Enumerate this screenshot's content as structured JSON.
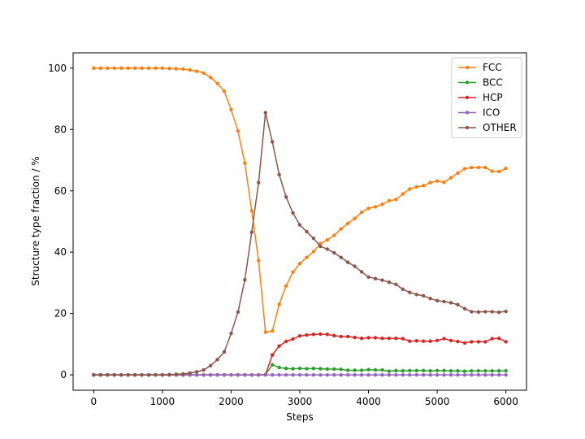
{
  "chart_data": {
    "type": "line",
    "xlabel": "Steps",
    "ylabel": "Structure type fraction / %",
    "xlim": [
      -300,
      6300
    ],
    "ylim": [
      -5,
      105
    ],
    "xticks": [
      0,
      1000,
      2000,
      3000,
      4000,
      5000,
      6000
    ],
    "yticks": [
      0,
      20,
      40,
      60,
      80,
      100
    ],
    "grid": false,
    "legend_position": "top-right",
    "x": [
      0,
      100,
      200,
      300,
      400,
      500,
      600,
      700,
      800,
      900,
      1000,
      1100,
      1200,
      1300,
      1400,
      1500,
      1600,
      1700,
      1800,
      1900,
      2000,
      2100,
      2200,
      2300,
      2400,
      2500,
      2600,
      2700,
      2800,
      2900,
      3000,
      3100,
      3200,
      3300,
      3400,
      3500,
      3600,
      3700,
      3800,
      3900,
      4000,
      4100,
      4200,
      4300,
      4400,
      4500,
      4600,
      4700,
      4800,
      4900,
      5000,
      5100,
      5200,
      5300,
      5400,
      5500,
      5600,
      5700,
      5800,
      5900,
      6000
    ],
    "series": [
      {
        "name": "FCC",
        "color": "#ff7f0e",
        "values": [
          100,
          100,
          100,
          100,
          100,
          100,
          100,
          100,
          100,
          100,
          100,
          99.9,
          99.8,
          99.7,
          99.4,
          99.0,
          98.4,
          97.0,
          95.0,
          92.5,
          86.5,
          79.5,
          69.0,
          53.5,
          37.3,
          13.9,
          14.3,
          23.0,
          29.0,
          33.5,
          36.3,
          38.3,
          40.2,
          42.8,
          44.0,
          45.5,
          47.6,
          49.4,
          51.0,
          53.0,
          54.3,
          54.8,
          55.6,
          56.8,
          57.2,
          59.0,
          60.6,
          61.3,
          61.7,
          62.7,
          63.2,
          62.8,
          64.3,
          65.8,
          67.2,
          67.6,
          67.6,
          67.6,
          66.4,
          66.3,
          67.3
        ]
      },
      {
        "name": "BCC",
        "color": "#2ca02c",
        "values": [
          0,
          0,
          0,
          0,
          0,
          0,
          0,
          0,
          0,
          0,
          0,
          0,
          0,
          0,
          0,
          0,
          0,
          0,
          0,
          0,
          0,
          0,
          0,
          0,
          0,
          0.1,
          3.3,
          2.4,
          2.1,
          2.0,
          2.1,
          2.0,
          2.1,
          2.0,
          1.9,
          1.9,
          1.8,
          1.5,
          1.5,
          1.5,
          1.7,
          1.6,
          1.6,
          1.2,
          1.4,
          1.3,
          1.4,
          1.4,
          1.4,
          1.3,
          1.4,
          1.4,
          1.3,
          1.3,
          1.2,
          1.3,
          1.3,
          1.3,
          1.3,
          1.3,
          1.3
        ]
      },
      {
        "name": "HCP",
        "color": "#d62728",
        "values": [
          0,
          0,
          0,
          0,
          0,
          0,
          0,
          0,
          0,
          0,
          0,
          0,
          0,
          0,
          0,
          0,
          0,
          0,
          0,
          0,
          0,
          0,
          0,
          0,
          0,
          0.1,
          6.5,
          9.4,
          10.9,
          11.7,
          12.7,
          13.0,
          13.2,
          13.3,
          13.2,
          12.8,
          12.5,
          12.5,
          12.2,
          11.9,
          12.1,
          12.1,
          11.9,
          11.9,
          11.9,
          11.8,
          11.0,
          11.1,
          11.0,
          11.0,
          11.2,
          11.8,
          11.2,
          10.9,
          10.4,
          10.8,
          10.8,
          10.8,
          11.8,
          11.9,
          10.8
        ]
      },
      {
        "name": "ICO",
        "color": "#9467bd",
        "values": [
          0,
          0,
          0,
          0,
          0,
          0,
          0,
          0,
          0,
          0,
          0,
          0,
          0,
          0,
          0,
          0,
          0,
          0,
          0,
          0,
          0,
          0,
          0,
          0,
          0,
          0,
          0,
          0,
          0,
          0,
          0,
          0,
          0,
          0,
          0,
          0,
          0,
          0,
          0,
          0,
          0,
          0,
          0,
          0,
          0,
          0,
          0,
          0,
          0,
          0,
          0,
          0,
          0,
          0,
          0,
          0,
          0,
          0,
          0,
          0,
          0
        ]
      },
      {
        "name": "OTHER",
        "color": "#8c564b",
        "values": [
          0,
          0,
          0,
          0,
          0,
          0,
          0,
          0,
          0,
          0,
          0,
          0.1,
          0.2,
          0.3,
          0.6,
          1.0,
          1.6,
          3.0,
          5.0,
          7.5,
          13.5,
          20.5,
          31.0,
          46.5,
          62.7,
          85.5,
          76.0,
          65.3,
          58.0,
          52.8,
          48.9,
          46.7,
          44.5,
          41.9,
          41.0,
          39.8,
          38.3,
          36.7,
          35.4,
          33.6,
          31.9,
          31.4,
          30.9,
          30.2,
          29.5,
          27.9,
          26.9,
          26.2,
          25.8,
          24.9,
          24.2,
          23.9,
          23.5,
          22.9,
          21.6,
          20.6,
          20.5,
          20.6,
          20.6,
          20.4,
          20.7
        ]
      }
    ]
  }
}
